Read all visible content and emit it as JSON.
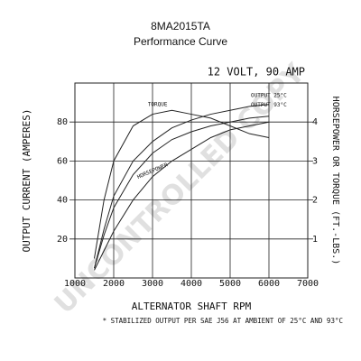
{
  "chart_data": {
    "type": "line",
    "title": "8MA2015TA",
    "subtitle": "Performance Curve",
    "annotation": "12 VOLT, 90 AMP",
    "watermark": "UNCONTROLLED COPY",
    "footnote": "* STABILIZED OUTPUT PER SAE J56 AT AMBIENT OF 25°C AND 93°C",
    "x_label": "ALTERNATOR SHAFT RPM",
    "y_label": "OUTPUT CURRENT (AMPERES)",
    "y2_label": "HORSEPOWER OR TORQUE (FT.-LBS.)",
    "x": [
      1500,
      1750,
      2000,
      2500,
      3000,
      3500,
      4000,
      4500,
      5000,
      5500,
      6000
    ],
    "series": [
      {
        "name": "TORQUE",
        "color": "#222222",
        "axis": "y2",
        "values": [
          0.5,
          2.0,
          3.0,
          3.9,
          4.2,
          4.3,
          4.2,
          4.1,
          3.9,
          3.7,
          3.6
        ]
      },
      {
        "name": "HORSEPOWER",
        "color": "#222222",
        "axis": "y2",
        "values": [
          0.2,
          0.7,
          1.2,
          2.0,
          2.6,
          3.0,
          3.3,
          3.6,
          3.8,
          3.9,
          4.0
        ]
      },
      {
        "name": "OUTPUT 25°C",
        "color": "#222222",
        "values": [
          5,
          25,
          42,
          60,
          70,
          77,
          81,
          84,
          86,
          88,
          89
        ]
      },
      {
        "name": "OUTPUT 93°C",
        "color": "#222222",
        "values": [
          5,
          22,
          36,
          53,
          64,
          71,
          75,
          78,
          80,
          82,
          83
        ]
      }
    ],
    "xlim": [
      1000,
      7000
    ],
    "xticks": [
      1000,
      2000,
      3000,
      4000,
      5000,
      6000,
      7000
    ],
    "ylim": [
      0,
      100
    ],
    "yticks": [
      20,
      40,
      60,
      80
    ],
    "y2lim": [
      0,
      5
    ],
    "y2ticks": [
      1,
      2,
      3,
      4
    ],
    "grid": true
  }
}
